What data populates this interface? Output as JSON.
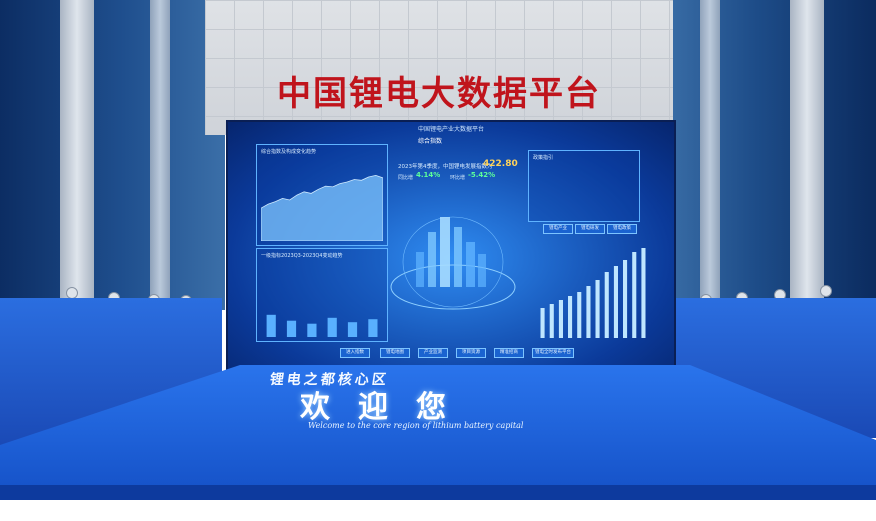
{
  "sign": "中国锂电大数据平台",
  "screen": {
    "title": "中国锂电产业大数据平台",
    "center_header": "综合指数",
    "summary_line": "2023年第4季度，中国锂电发展指数为",
    "index_value": "422.80",
    "yoy_label": "同比增",
    "yoy_value": "4.14%",
    "qoq_label": "环比增",
    "qoq_value": "-5.42%",
    "panel_left_title": "综合指数及构成变化趋势",
    "panel_left2_title": "一级指标2023Q3-2023Q4变动趋势",
    "panel_right_title": "政策指引",
    "tabs": [
      "锂电产业",
      "锂电研发",
      "锂电政策"
    ],
    "nav": [
      "进入指数",
      "锂电地图",
      "产业监测",
      "项目资源",
      "精准招商",
      "锂电全时发布平台"
    ]
  },
  "floor": {
    "top_line": "锂电之都核心区",
    "main": "欢迎您",
    "english": "Welcome to the core region of lithium battery capital"
  },
  "chart_data": [
    {
      "type": "area",
      "title": "综合指数及构成变化趋势",
      "values": [
        40,
        45,
        48,
        52,
        50,
        56,
        60,
        58,
        63,
        67,
        66,
        70,
        72,
        75,
        74,
        78,
        80,
        77
      ]
    },
    {
      "type": "bar",
      "title": "一级指标2023Q3-2023Q4变动趋势",
      "values": [
        30,
        22,
        18,
        26,
        20,
        24
      ]
    },
    {
      "type": "bar",
      "title": "",
      "values": [
        30,
        34,
        38,
        42,
        46,
        52,
        58,
        66,
        72,
        78,
        86,
        90
      ]
    }
  ]
}
